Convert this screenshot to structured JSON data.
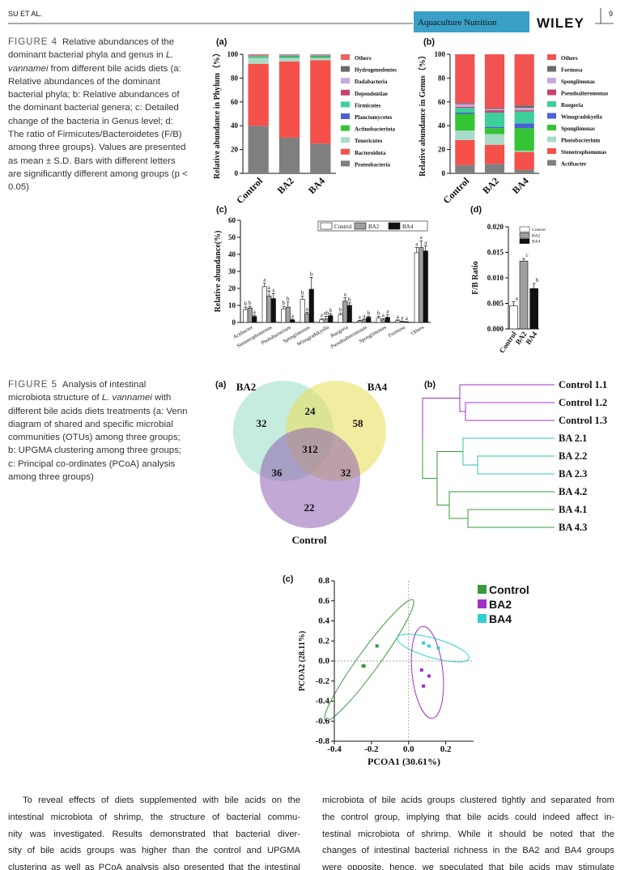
{
  "header": {
    "running_head": "SU ET AL.",
    "journal": "Aquaculture Nutrition",
    "publisher": "WILEY",
    "page": "9"
  },
  "figure4": {
    "label": "FIGURE 4",
    "caption": [
      "Relative abundances of the dominant bacterial phyla and genus in ",
      "L. vannamei",
      " from different bile acids diets (a: Relative abundances of the dominant bacterial phyla; b: Relative abundances of the dominant bacterial genera; c: Detailed change of the bacteria in Genus level; d: The ratio of Firmicutes/Bacteroidetes (F/B) among three groups). Values are presented as mean ± S.D. Bars with different letters are significantly different among groups (p < 0.05)"
    ]
  },
  "figure5": {
    "label": "FIGURE 5",
    "caption": [
      "Analysis of intestinal microbiota structure of ",
      "L. vannamei",
      " with different bile acids diets treatments (a: Venn diagram of shared and specific microbial communities (OTUs) among three groups; b: UPGMA clustering among three groups; c: Principal co-ordinates (PCoA) analysis among three groups)"
    ]
  },
  "chart_data": [
    {
      "type": "stacked_bar",
      "panel": "(a)",
      "y_label": "Relative abundance in Phylum（%）",
      "categories": [
        "Control",
        "BA2",
        "BA4"
      ],
      "ylim": [
        0,
        100
      ],
      "yticks": [
        0,
        20,
        40,
        60,
        80,
        100
      ],
      "series": [
        {
          "name": "Proteobacteria",
          "color": "#7f7f7f",
          "values": [
            40,
            30,
            25
          ]
        },
        {
          "name": "Bacteroidota",
          "color": "#f5504a",
          "values": [
            52,
            64,
            70
          ]
        },
        {
          "name": "Tenericutes",
          "color": "#a8dcc8",
          "values": [
            5,
            3,
            2
          ]
        },
        {
          "name": "Actinobacteriota",
          "color": "#34c434",
          "values": [
            0.8,
            1,
            1
          ]
        },
        {
          "name": "Planctomycetes",
          "color": "#4a5fd8",
          "values": [
            0.3,
            0.5,
            0.5
          ]
        },
        {
          "name": "Firmicutes",
          "color": "#3ccf9a",
          "values": [
            0.5,
            0.5,
            0.5
          ]
        },
        {
          "name": "Dependentiae",
          "color": "#c8426a",
          "values": [
            0.2,
            0.2,
            0.2
          ]
        },
        {
          "name": "Dadabacteria",
          "color": "#c8a8e0",
          "values": [
            0.2,
            0.2,
            0.2
          ]
        },
        {
          "name": "Hydrogenedentes",
          "color": "#6a6a6a",
          "values": [
            0.3,
            0.2,
            0.2
          ]
        },
        {
          "name": "Others",
          "color": "#f06060",
          "values": [
            0.7,
            0.4,
            0.4
          ]
        }
      ]
    },
    {
      "type": "stacked_bar",
      "panel": "(b)",
      "y_label": "Relative abundance in Genus（%）",
      "categories": [
        "Control",
        "BA2",
        "BA4"
      ],
      "ylim": [
        0,
        100
      ],
      "yticks": [
        0,
        20,
        40,
        60,
        80,
        100
      ],
      "series": [
        {
          "name": "Actibacter",
          "color": "#7f7f7f",
          "values": [
            7,
            8,
            3
          ]
        },
        {
          "name": "Stenotrophomonas",
          "color": "#f5504a",
          "values": [
            21,
            16,
            15
          ]
        },
        {
          "name": "Photobacterium",
          "color": "#a8dcc8",
          "values": [
            8,
            9,
            1
          ]
        },
        {
          "name": "Spongiimonas",
          "color": "#34c434",
          "values": [
            14,
            5,
            19
          ]
        },
        {
          "name": "Winogradskyella",
          "color": "#4a5fd8",
          "values": [
            1,
            1,
            4
          ]
        },
        {
          "name": "Ruegeria",
          "color": "#3ccf9a",
          "values": [
            4,
            12,
            10
          ]
        },
        {
          "name": "Pseudoalteromonas",
          "color": "#c8426a",
          "values": [
            1,
            2,
            1
          ]
        },
        {
          "name": "Spongiimonas",
          "color": "#c8a8e0",
          "values": [
            2,
            1,
            2
          ]
        },
        {
          "name": "Formosa",
          "color": "#6a6a6a",
          "values": [
            1,
            1,
            2
          ]
        },
        {
          "name": "Others",
          "color": "#f25252",
          "values": [
            41,
            45,
            43
          ]
        }
      ]
    },
    {
      "type": "grouped_bar",
      "panel": "(c)",
      "y_label": "Relative abundance(%)",
      "categories": [
        "Actibacter",
        "Stenotrophomonas",
        "Photobacterium",
        "Spongiimonas",
        "Winogradskyella",
        "Ruegeria",
        "Pseudoalteromonas",
        "Spongiimonas",
        "Formosa",
        "Others"
      ],
      "ylim": [
        0,
        60
      ],
      "yticks": [
        0,
        10,
        20,
        30,
        40,
        50,
        60
      ],
      "series": [
        {
          "name": "Control",
          "color": "#ffffff",
          "values": [
            7.5,
            21,
            8,
            13.5,
            1.5,
            4.5,
            0.8,
            2.5,
            1,
            41
          ],
          "errors": [
            1.5,
            2,
            1.5,
            2,
            0.8,
            1,
            0.4,
            1,
            0.5,
            3
          ],
          "letters": [
            "b",
            "a",
            "b",
            "b",
            "a",
            "b",
            "a",
            "b",
            "a",
            "a"
          ]
        },
        {
          "name": "BA2",
          "color": "#a0a0a0",
          "values": [
            8.5,
            15.5,
            9,
            5,
            2,
            12.5,
            1.5,
            1.5,
            0.5,
            44
          ],
          "errors": [
            1,
            3,
            3,
            1,
            1.5,
            2,
            0.5,
            0.8,
            0.3,
            4
          ],
          "letters": [
            "b",
            "a",
            "b",
            "a",
            "ab",
            "a",
            "a",
            "a",
            "a",
            "a"
          ]
        },
        {
          "name": "BA4",
          "color": "#111111",
          "values": [
            3.5,
            14,
            1.5,
            19.5,
            4,
            10,
            3,
            3,
            0.3,
            42
          ],
          "errors": [
            0.8,
            3,
            0.5,
            7,
            1,
            1.5,
            0.5,
            1.5,
            0.2,
            3
          ],
          "letters": [
            "a",
            "a",
            "a",
            "b",
            "b",
            "b",
            "b",
            "a",
            "a",
            "a"
          ]
        }
      ]
    },
    {
      "type": "bar",
      "panel": "(d)",
      "y_label": "F/B Ratio",
      "categories": [
        "Control",
        "BA2",
        "BA4"
      ],
      "colors": [
        "#ffffff",
        "#a0a0a0",
        "#111111"
      ],
      "values": [
        0.0045,
        0.0133,
        0.0079
      ],
      "errors": [
        0.0008,
        0.0005,
        0.001
      ],
      "letters": [
        "a",
        "c",
        "b"
      ],
      "ylim": [
        0,
        0.02
      ],
      "yticks": [
        {
          "value": 0,
          "label": "0.000"
        },
        {
          "value": 0.005,
          "label": "0.005"
        },
        {
          "value": 0.01,
          "label": "0.010"
        },
        {
          "value": 0.015,
          "label": "0.015"
        },
        {
          "value": 0.02,
          "label": "0.020"
        }
      ]
    },
    {
      "type": "scatter",
      "panel": "(c)",
      "x_label": "PCOA1 (30.61%)",
      "y_label": "PCOA2 (28.11%)",
      "xlim": [
        -0.4,
        0.35
      ],
      "ylim": [
        -0.8,
        0.8
      ],
      "xticks": [
        -0.4,
        -0.2,
        {
          "value": 0,
          "label": "0.0"
        },
        0.2
      ],
      "yticks": [
        -0.8,
        -0.6,
        -0.4,
        -0.2,
        {
          "value": 0,
          "label": "0.0"
        },
        0.2,
        0.4,
        0.6,
        0.8
      ],
      "series": [
        {
          "name": "Control",
          "color": "#3a9a3a",
          "x": [
            -0.245,
            -0.24,
            -0.17
          ],
          "y": [
            -0.05,
            -0.05,
            0.15
          ]
        },
        {
          "name": "BA2",
          "color": "#a030c8",
          "x": [
            0.07,
            0.08,
            0.11
          ],
          "y": [
            -0.09,
            -0.25,
            -0.15
          ]
        },
        {
          "name": "BA4",
          "color": "#30d0d0",
          "x": [
            0.08,
            0.11,
            0.16
          ],
          "y": [
            0.18,
            0.15,
            0.13
          ]
        }
      ]
    }
  ],
  "venn": {
    "panel": "(a)",
    "sets": [
      "BA2",
      "BA4",
      "Control"
    ],
    "regions": [
      32,
      24,
      58,
      312,
      36,
      32,
      22
    ]
  },
  "dendrogram": {
    "panel": "(b)",
    "leaves": [
      "Control 1.1",
      "Control 1.2",
      "Control 1.3",
      "BA 2.1",
      "BA 2.2",
      "BA 2.3",
      "BA 4.2",
      "BA 4.1",
      "BA 4.3"
    ]
  },
  "body": {
    "col1": [
      "To reveal effects of diets supplemented with bile acids on the",
      "intestinal microbiota of shrimp, the structure of bacterial commu-",
      "nity was investigated. Results demonstrated that bacterial diver-",
      "sity of bile acids groups was higher than the control and UPGMA",
      "clustering as well as PCoA analysis also presented that the intestinal"
    ],
    "col2": [
      "microbiota of bile acids groups clustered tightly and separated from",
      "the control group, implying that bile acids could indeed affect in-",
      "testinal microbiota of shrimp. While it should be noted that the",
      "changes of intestinal bacterial richness in the BA2 and BA4 groups",
      "were opposite, hence, we speculated that bile acids may stimulate"
    ]
  }
}
